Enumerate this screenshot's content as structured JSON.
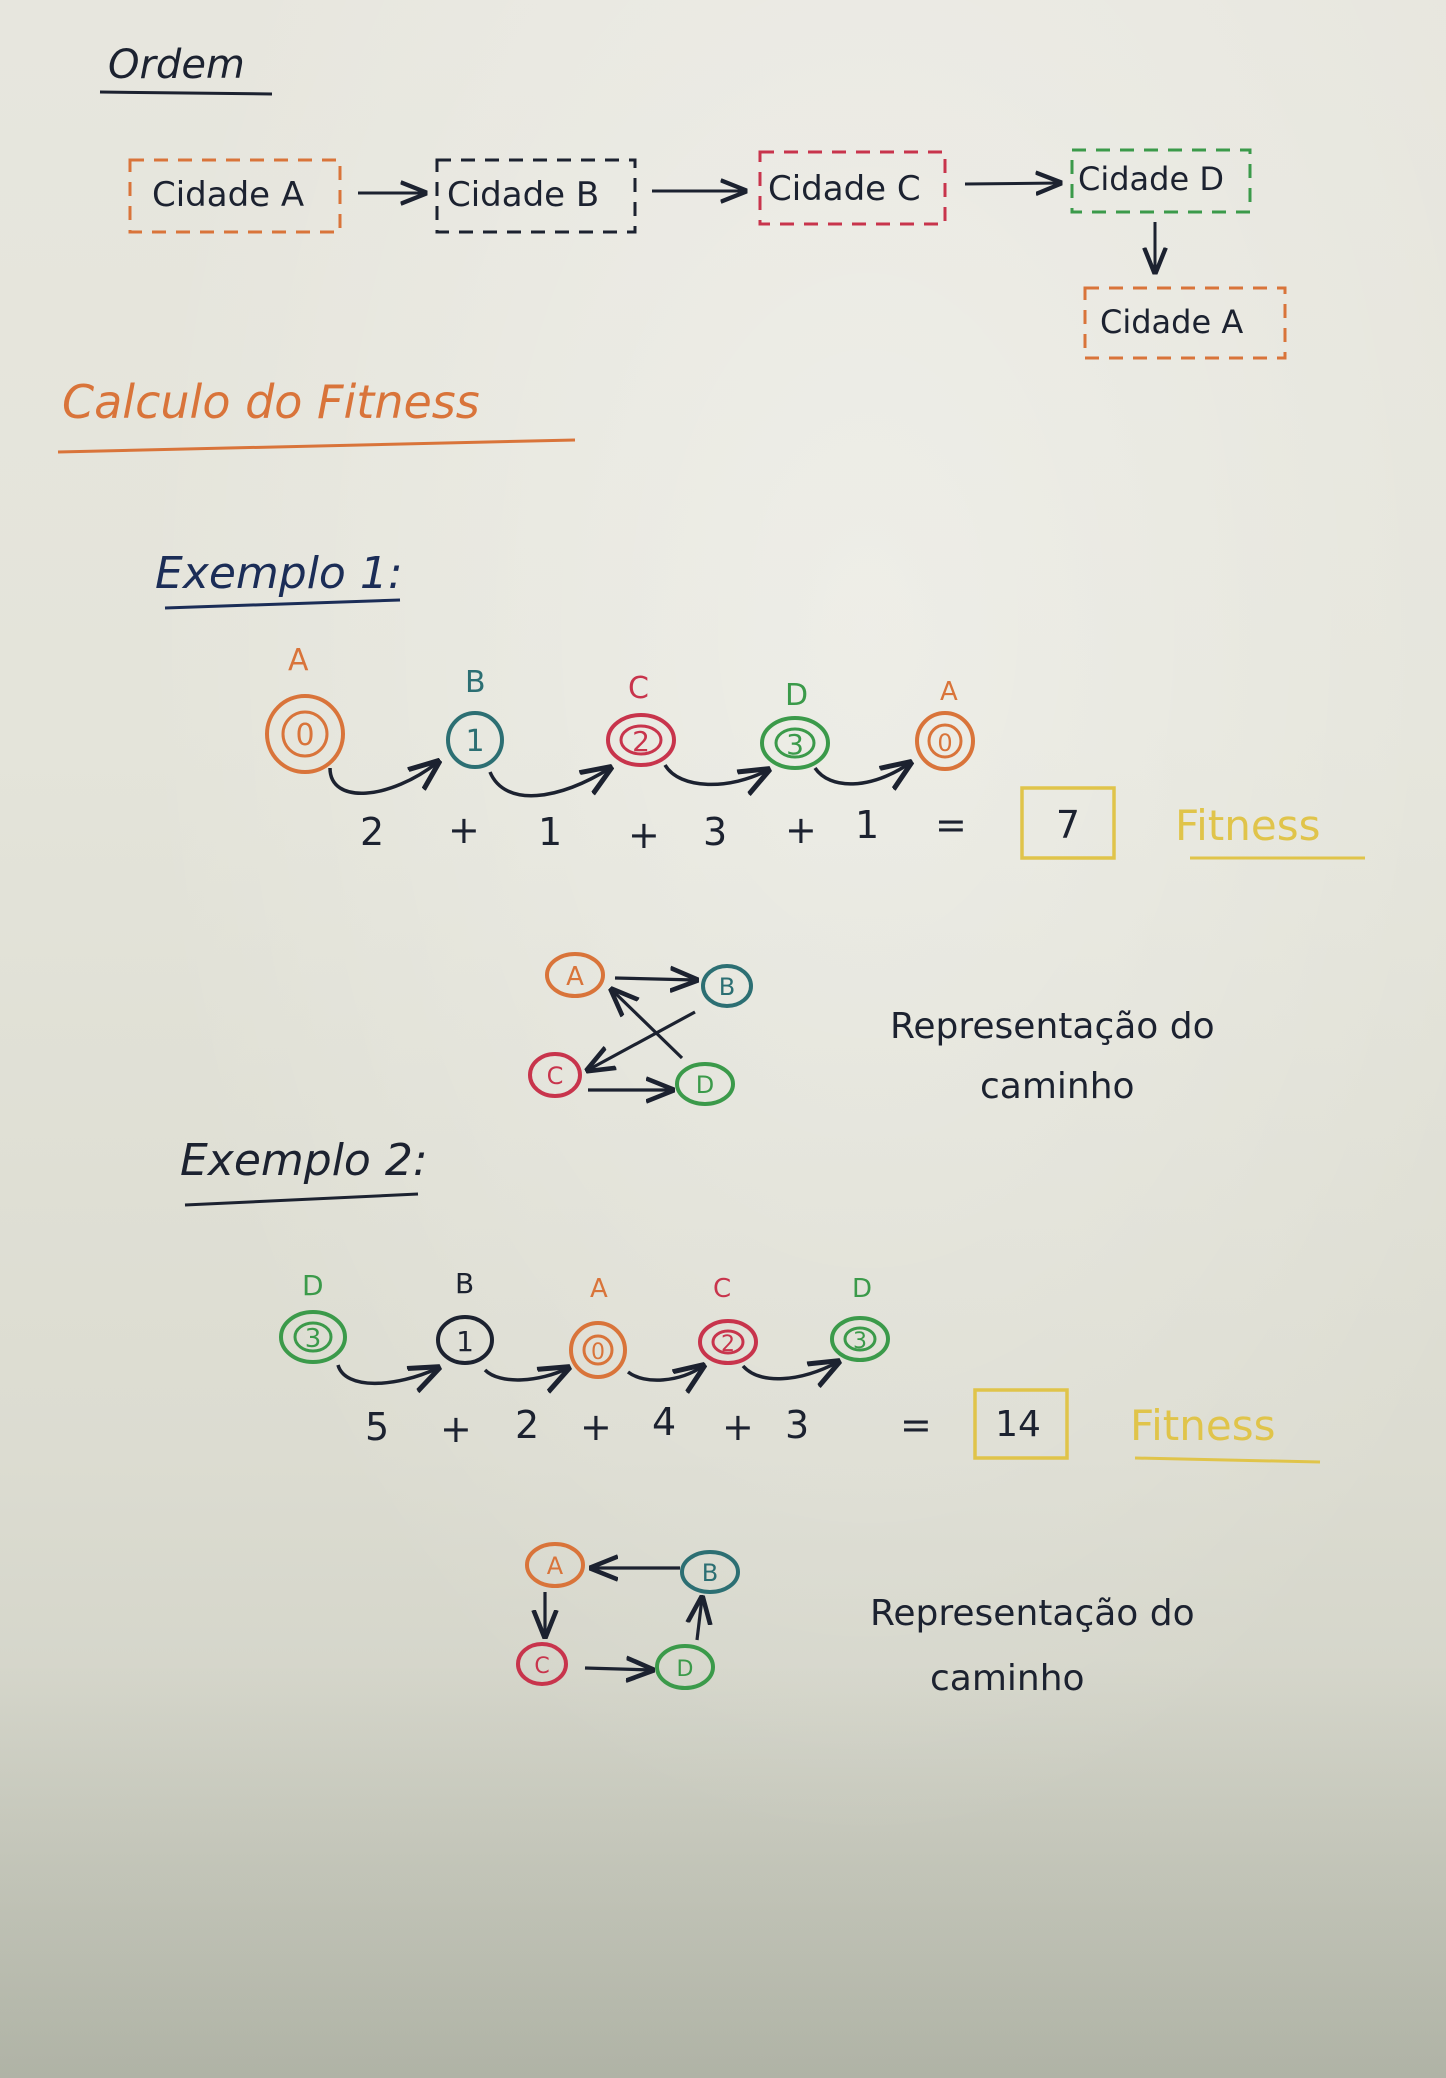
{
  "colors": {
    "ink": "#1c2230",
    "orange": "#d9743a",
    "teal": "#2c6f73",
    "red": "#c8344c",
    "green": "#3b9a4a",
    "yellow": "#e0c44a",
    "navy": "#1b2d57"
  },
  "ordem": {
    "title": "Ordem",
    "cities": [
      "Cidade A",
      "Cidade B",
      "Cidade C",
      "Cidade D"
    ],
    "return_city": "Cidade A"
  },
  "fitness_section": {
    "title": "Calculo do Fitness"
  },
  "example1": {
    "title": "Exemplo 1:",
    "nodes": [
      {
        "letter": "A",
        "number": "0"
      },
      {
        "letter": "B",
        "number": "1"
      },
      {
        "letter": "C",
        "number": "2"
      },
      {
        "letter": "D",
        "number": "3"
      },
      {
        "letter": "A",
        "number": "0"
      }
    ],
    "equation": [
      "2",
      "+",
      "1",
      "+",
      "3",
      "+",
      "1",
      "="
    ],
    "result": "7",
    "fitness_label": "Fitness",
    "graph_nodes": [
      "A",
      "B",
      "C",
      "D"
    ],
    "caption_line1": "Representação do",
    "caption_line2": "caminho"
  },
  "example2": {
    "title": "Exemplo 2:",
    "nodes": [
      {
        "letter": "D",
        "number": "3"
      },
      {
        "letter": "B",
        "number": "1"
      },
      {
        "letter": "A",
        "number": "0"
      },
      {
        "letter": "C",
        "number": "2"
      },
      {
        "letter": "D",
        "number": "3"
      }
    ],
    "equation": [
      "5",
      "+",
      "2",
      "+",
      "4",
      "+",
      "3",
      "="
    ],
    "result": "14",
    "fitness_label": "Fitness",
    "graph_nodes": [
      "A",
      "B",
      "C",
      "D"
    ],
    "caption_line1": "Representação do",
    "caption_line2": "caminho"
  }
}
